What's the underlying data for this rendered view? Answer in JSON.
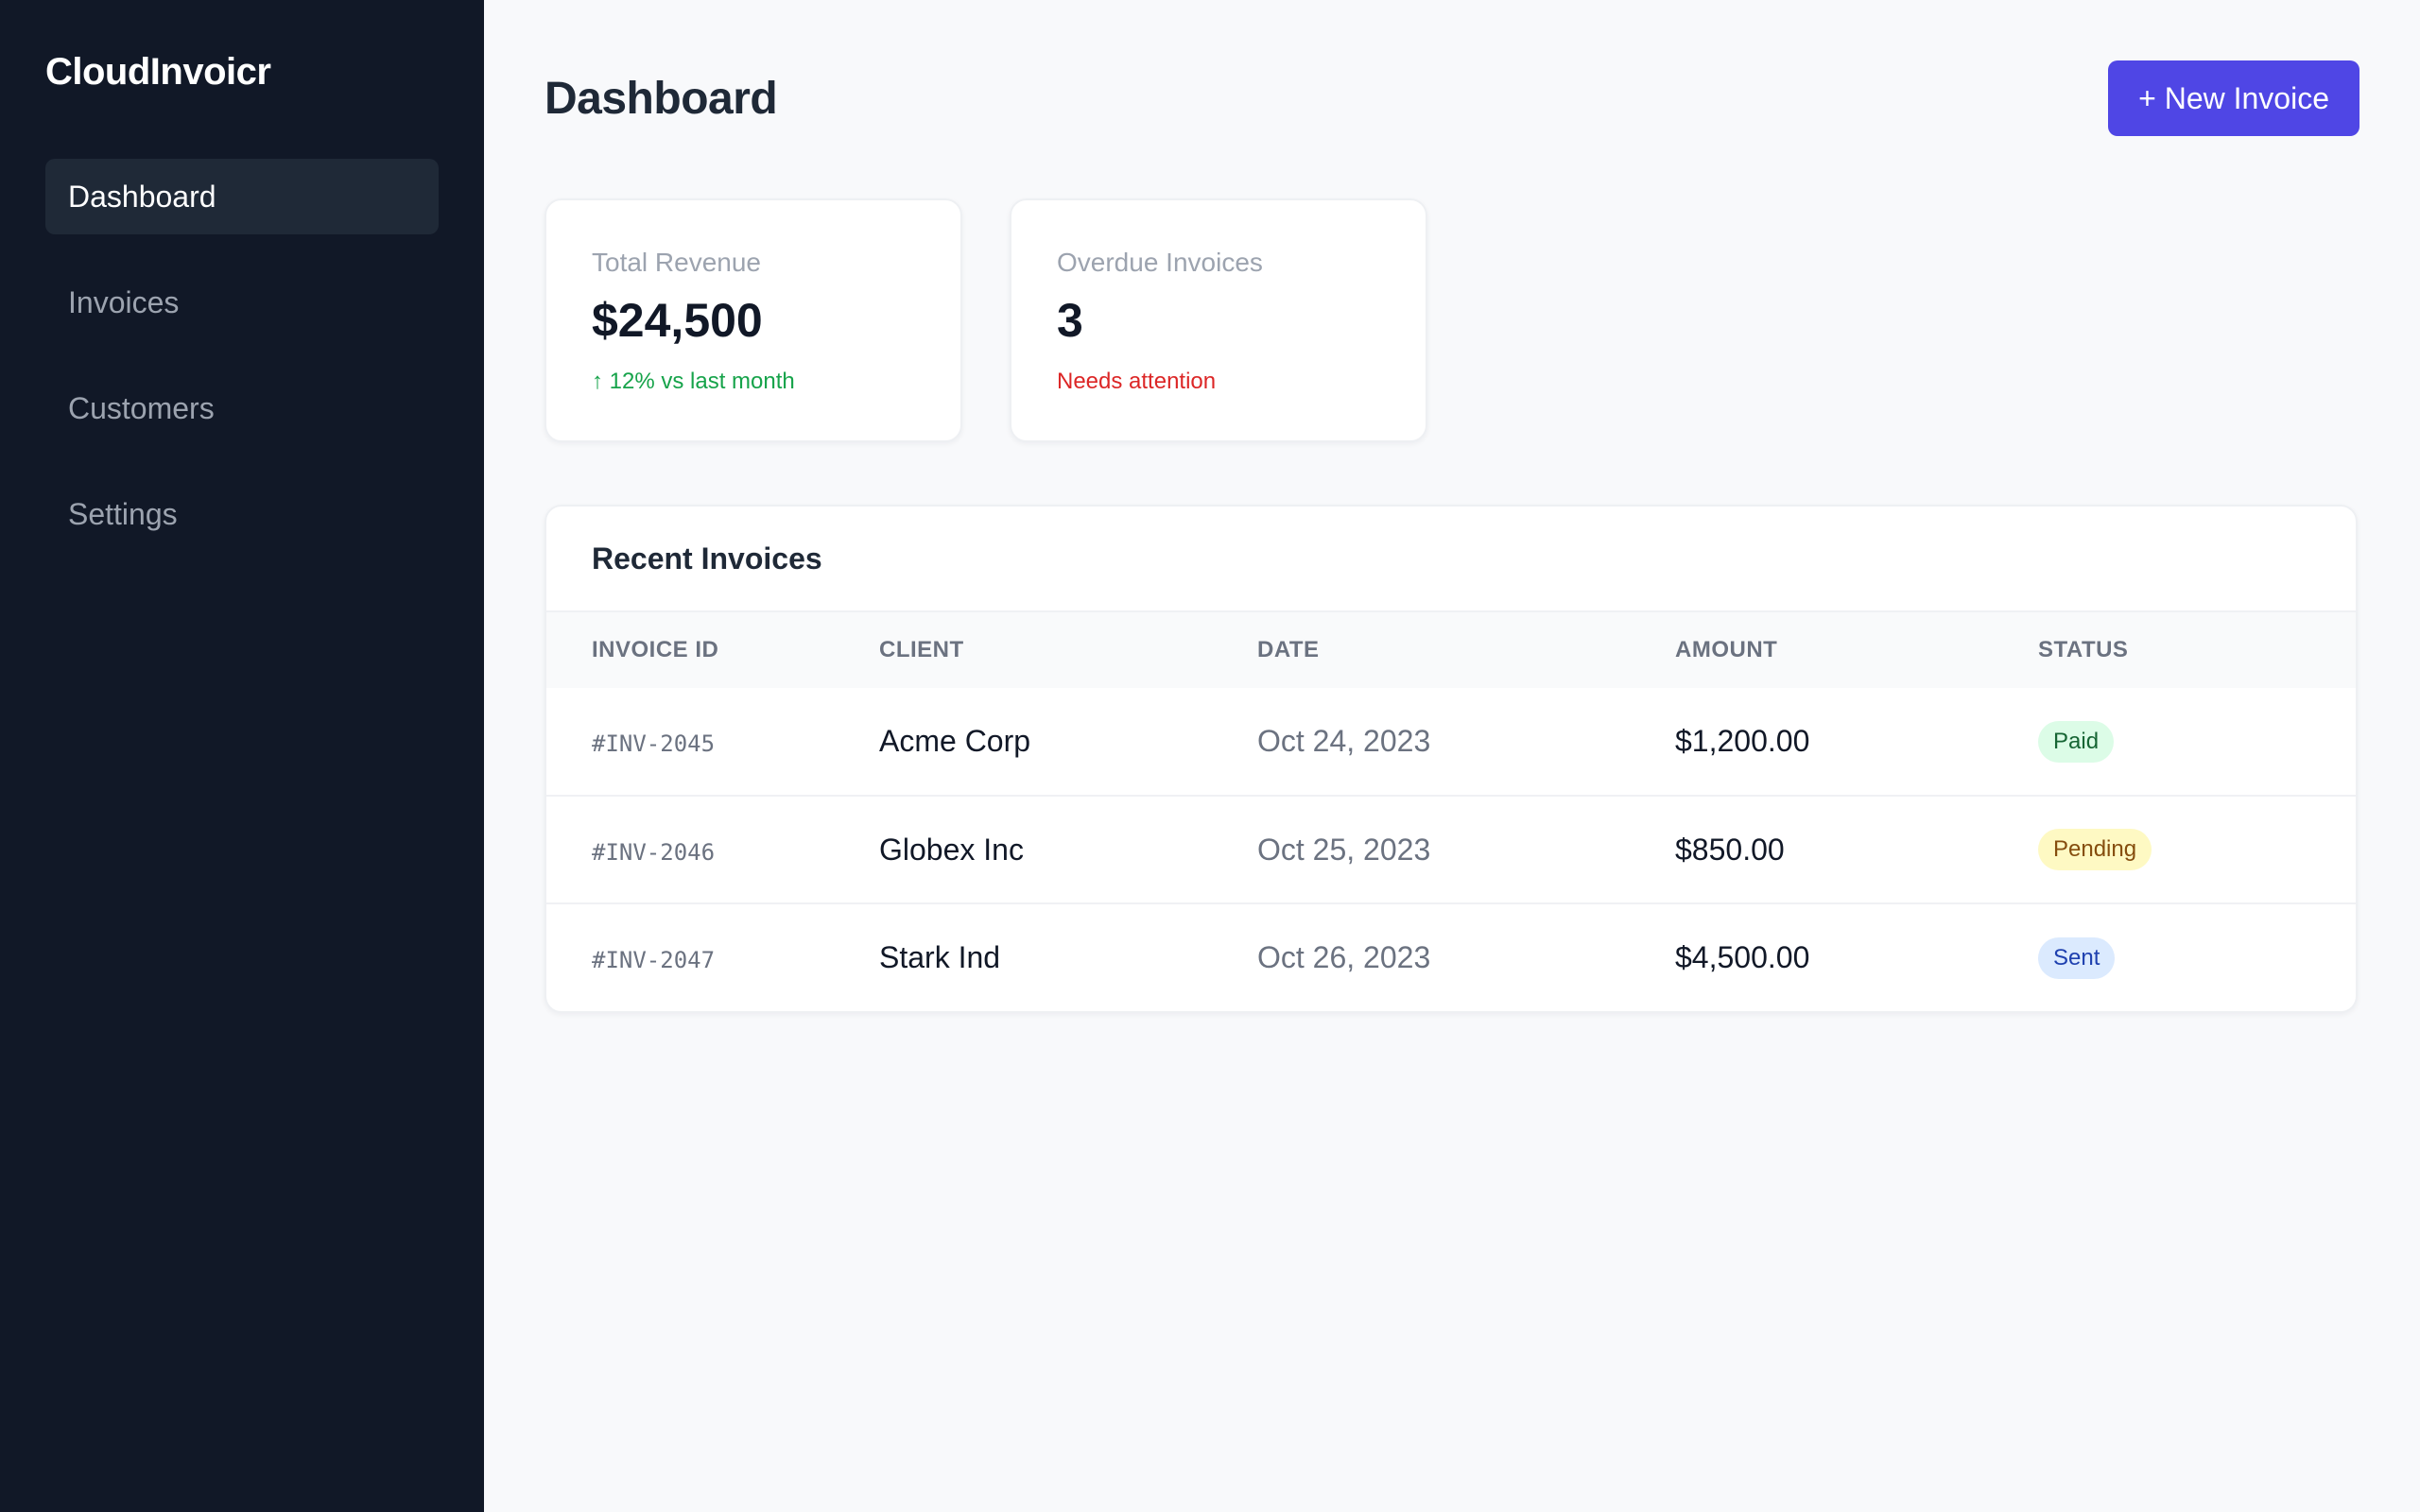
{
  "app": {
    "brand": "CloudInvoicr"
  },
  "sidebar": {
    "items": [
      {
        "label": "Dashboard",
        "active": true
      },
      {
        "label": "Invoices",
        "active": false
      },
      {
        "label": "Customers",
        "active": false
      },
      {
        "label": "Settings",
        "active": false
      }
    ]
  },
  "header": {
    "title": "Dashboard",
    "new_invoice_label": "+ New Invoice"
  },
  "stats": {
    "revenue": {
      "label": "Total Revenue",
      "value": "$24,500",
      "note": "↑ 12% vs last month"
    },
    "overdue": {
      "label": "Overdue Invoices",
      "value": "3",
      "note": "Needs attention"
    }
  },
  "recent": {
    "title": "Recent Invoices",
    "columns": [
      "INVOICE ID",
      "CLIENT",
      "DATE",
      "AMOUNT",
      "STATUS"
    ],
    "rows": [
      {
        "id": "#INV-2045",
        "client": "Acme Corp",
        "date": "Oct 24, 2023",
        "amount": "$1,200.00",
        "status": "Paid"
      },
      {
        "id": "#INV-2046",
        "client": "Globex Inc",
        "date": "Oct 25, 2023",
        "amount": "$850.00",
        "status": "Pending"
      },
      {
        "id": "#INV-2047",
        "client": "Stark Ind",
        "date": "Oct 26, 2023",
        "amount": "$4,500.00",
        "status": "Sent"
      }
    ]
  },
  "colors": {
    "sidebar_bg": "#111827",
    "accent": "#4f46e5",
    "positive": "#16a34a",
    "negative": "#dc2626"
  }
}
